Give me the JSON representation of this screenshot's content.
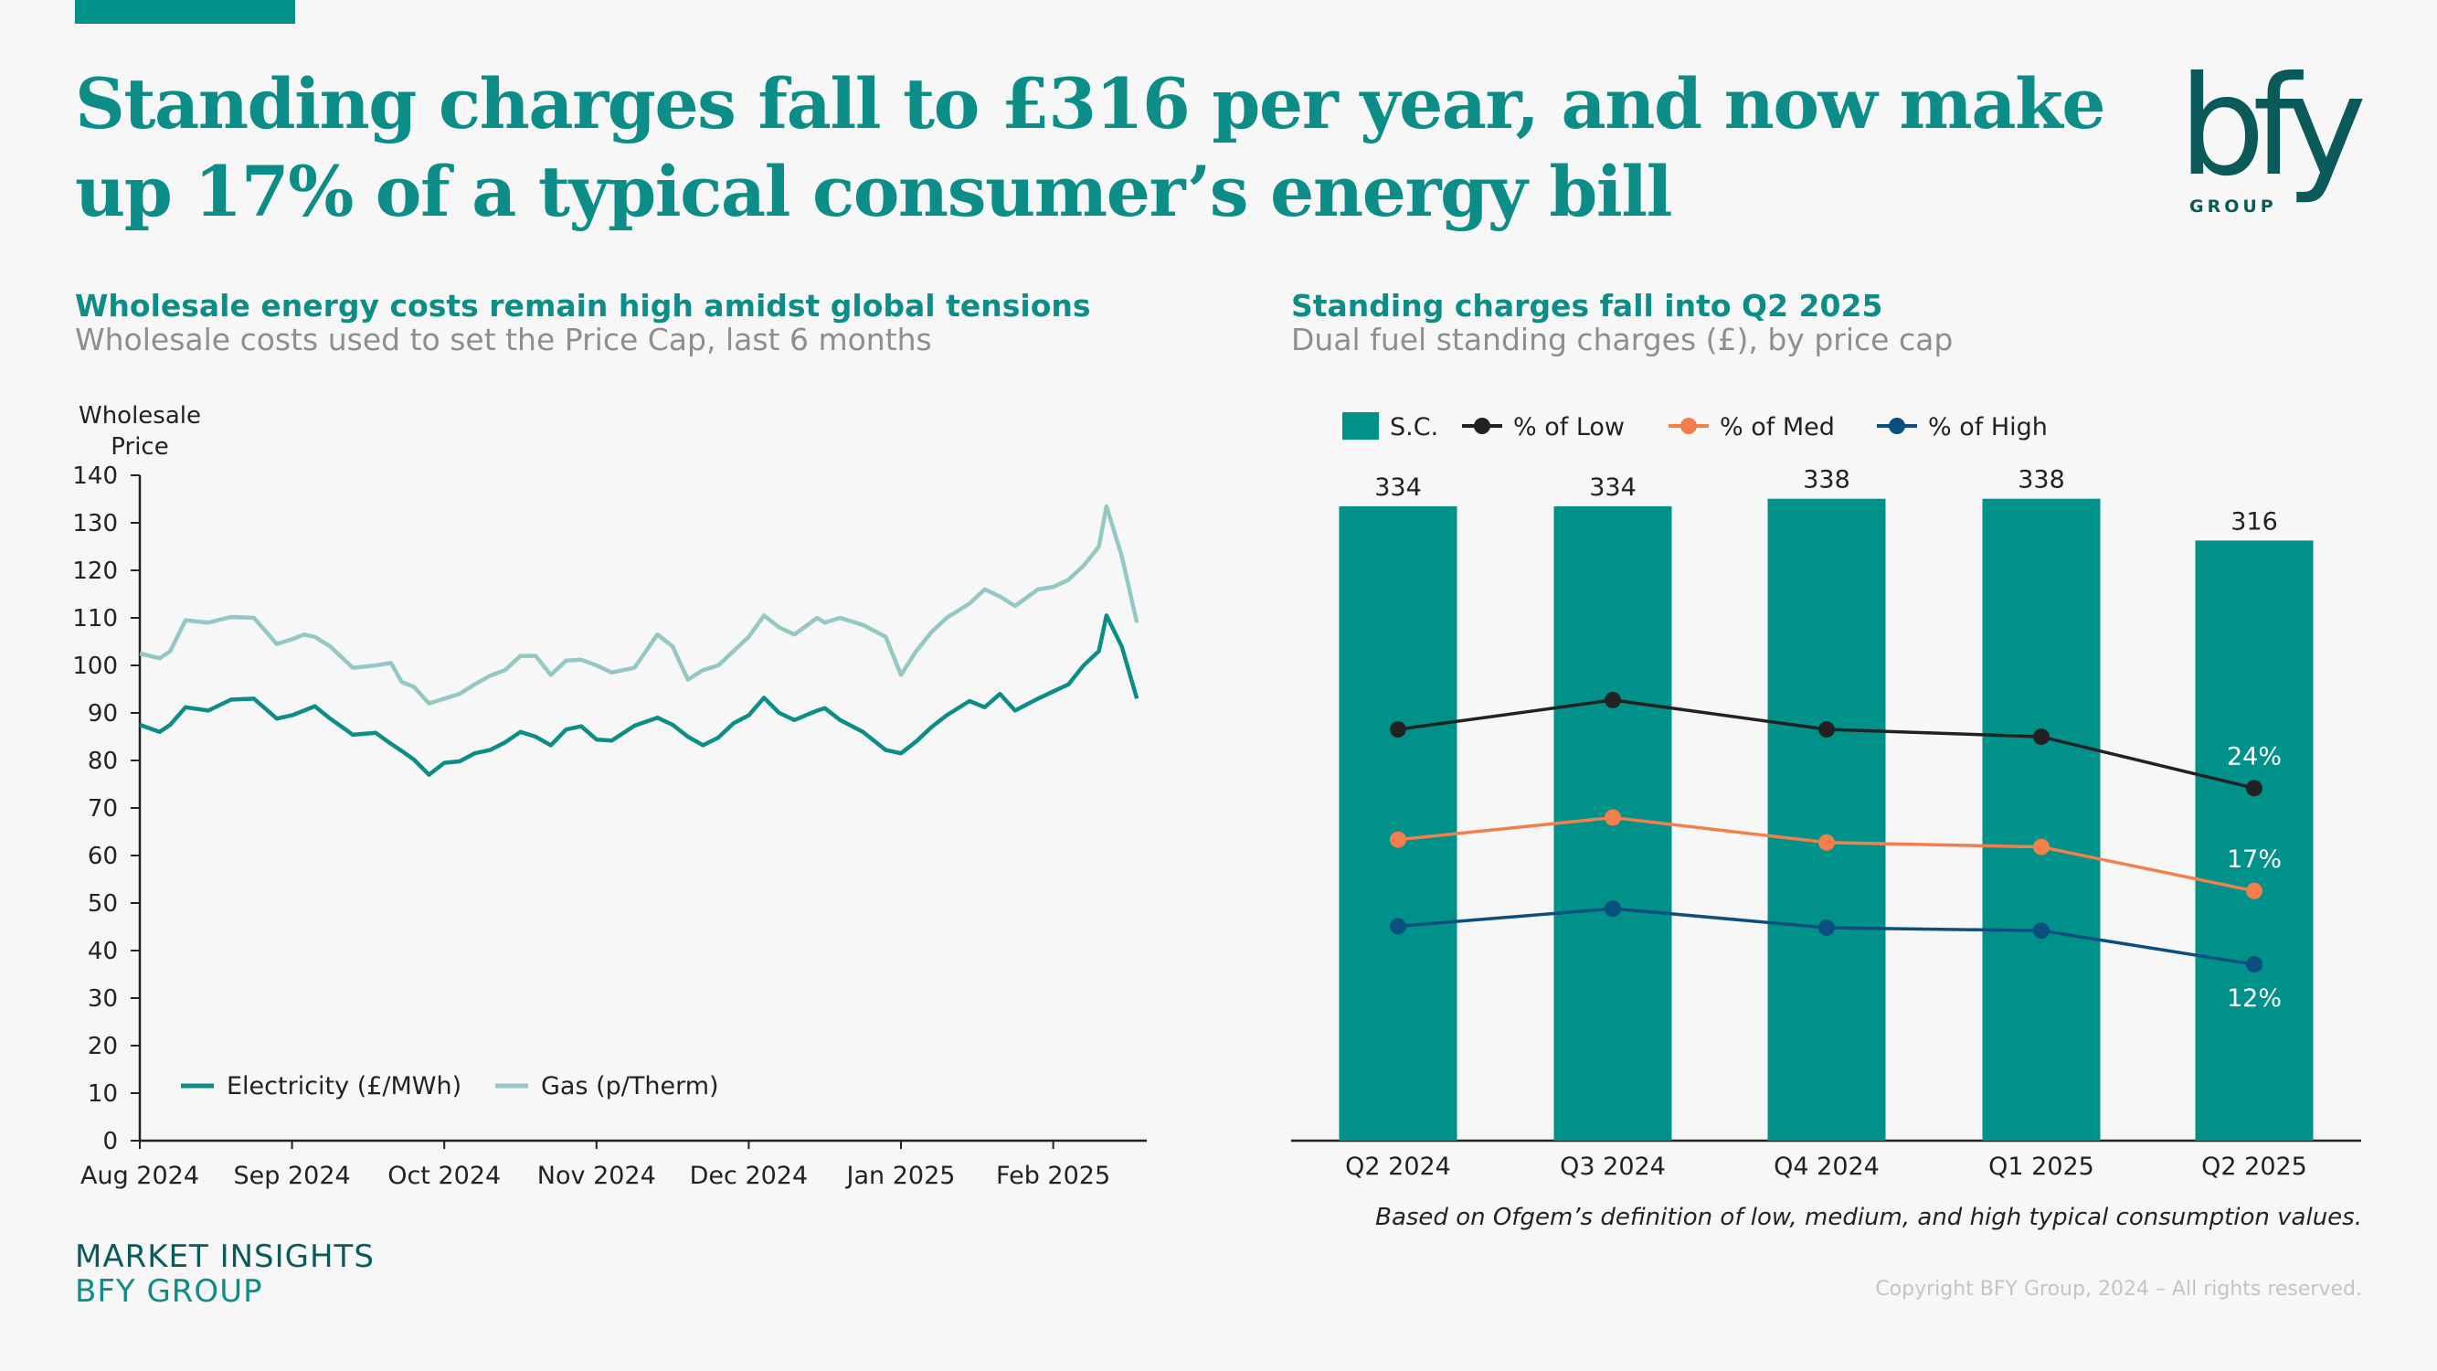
{
  "header": {
    "title": "Standing charges fall to £316 per year, and now make up 17% of a typical consumer’s energy bill",
    "logo_text": "bfy",
    "logo_subtext": "GROUP"
  },
  "left_panel": {
    "title": "Wholesale energy costs remain high amidst global tensions",
    "subtitle": "Wholesale costs used to set the Price Cap, last 6 months"
  },
  "right_panel": {
    "title": "Standing charges fall into Q2 2025",
    "subtitle": "Dual fuel standing charges (£), by price cap",
    "note": "Based on Ofgem’s definition of low, medium, and high typical consumption values."
  },
  "footer": {
    "brand_line1": "MARKET INSIGHTS",
    "brand_line2": "BFY GROUP",
    "copyright": "Copyright BFY Group, 2024 – All rights reserved."
  },
  "colors": {
    "brand_teal": "#00918a",
    "electricity": "#0c8d87",
    "gas": "#94c8c2",
    "low": "#222222",
    "med": "#f47f4d",
    "high": "#0b4f7f"
  },
  "chart_data": [
    {
      "type": "line",
      "title": "Wholesale energy costs remain high amidst global tensions",
      "ylabel": "Wholesale Price",
      "xlabel": "",
      "ylim": [
        0,
        140
      ],
      "yticks": [
        0,
        10,
        20,
        30,
        40,
        50,
        60,
        70,
        80,
        90,
        100,
        110,
        120,
        130,
        140
      ],
      "xticks": [
        "Aug 2024",
        "Sep 2024",
        "Oct 2024",
        "Nov 2024",
        "Dec 2024",
        "Jan 2025",
        "Feb 2025"
      ],
      "x_range_months": [
        0,
        6.6
      ],
      "legend": "bottom-left",
      "grid": false,
      "x_unit": "months since 1 Aug 2024",
      "x": [
        0,
        0.13,
        0.2,
        0.3,
        0.45,
        0.6,
        0.75,
        0.9,
        1.0,
        1.08,
        1.15,
        1.25,
        1.4,
        1.55,
        1.65,
        1.72,
        1.8,
        1.9,
        2.0,
        2.1,
        2.2,
        2.3,
        2.4,
        2.5,
        2.6,
        2.7,
        2.8,
        2.9,
        3.0,
        3.1,
        3.25,
        3.4,
        3.5,
        3.6,
        3.7,
        3.8,
        3.9,
        4.0,
        4.1,
        4.2,
        4.3,
        4.45,
        4.5,
        4.6,
        4.75,
        4.9,
        5.0,
        5.1,
        5.2,
        5.3,
        5.45,
        5.55,
        5.65,
        5.75,
        5.9,
        6.0,
        6.1,
        6.2,
        6.3,
        6.35,
        6.45,
        6.55
      ],
      "series": [
        {
          "name": "Electricity (£/MWh)",
          "values": [
            87.5,
            86,
            87.5,
            91.2,
            90.5,
            92.8,
            93,
            88.8,
            89.5,
            90.5,
            91.4,
            88.8,
            85.4,
            85.8,
            83.5,
            82,
            80.2,
            77,
            79.5,
            79.8,
            81.5,
            82.2,
            83.8,
            86,
            85,
            83.2,
            86.5,
            87.2,
            84.4,
            84.2,
            87.3,
            89,
            87.5,
            85,
            83.2,
            84.8,
            87.8,
            89.5,
            93.2,
            90,
            88.5,
            90.5,
            91,
            88.5,
            86,
            82.2,
            81.5,
            84,
            87,
            89.5,
            92.5,
            91.2,
            94,
            90.5,
            93,
            94.5,
            96,
            100,
            103,
            110.5,
            104,
            93
          ]
        },
        {
          "name": "Gas (p/Therm)",
          "values": [
            102.5,
            101.5,
            103,
            109.5,
            109,
            110.2,
            110,
            104.5,
            105.5,
            106.5,
            106,
            104,
            99.5,
            100,
            100.5,
            96.5,
            95.5,
            92,
            93,
            94,
            96,
            97.8,
            99,
            102,
            102,
            98,
            101,
            101.2,
            100,
            98.5,
            99.5,
            106.5,
            104,
            97,
            99,
            100,
            103,
            106,
            110.5,
            108,
            106.5,
            110,
            109,
            110,
            108.5,
            106,
            98,
            103,
            107,
            110,
            113,
            116,
            114.5,
            112.5,
            116,
            116.5,
            118,
            121,
            125,
            133.5,
            123,
            109
          ]
        }
      ]
    },
    {
      "type": "bar",
      "title": "Standing charges fall into Q2 2025",
      "subtitle": "Dual fuel standing charges (£), by price cap",
      "categories": [
        "Q2 2024",
        "Q3 2024",
        "Q4 2024",
        "Q1 2025",
        "Q2 2025"
      ],
      "ylim": [
        0,
        360
      ],
      "secondary_ylim_percent": [
        0,
        36
      ],
      "legend": "top-left",
      "grid": false,
      "series": [
        {
          "name": "S.C.",
          "kind": "bar",
          "values": [
            334,
            334,
            338,
            338,
            316
          ],
          "data_labels": [
            "334",
            "334",
            "338",
            "338",
            "316"
          ]
        },
        {
          "name": "% of Low",
          "kind": "line",
          "unit": "%",
          "values": [
            28,
            30,
            28,
            27.5,
            24
          ],
          "data_labels": [
            "",
            "",
            "",
            "",
            "24%"
          ]
        },
        {
          "name": "% of Med",
          "kind": "line",
          "unit": "%",
          "values": [
            20.5,
            22,
            20.3,
            20,
            17
          ],
          "data_labels": [
            "",
            "",
            "",
            "",
            "17%"
          ]
        },
        {
          "name": "% of High",
          "kind": "line",
          "unit": "%",
          "values": [
            14.6,
            15.8,
            14.5,
            14.3,
            12
          ],
          "data_labels": [
            "",
            "",
            "",
            "",
            "12%"
          ]
        }
      ]
    }
  ]
}
